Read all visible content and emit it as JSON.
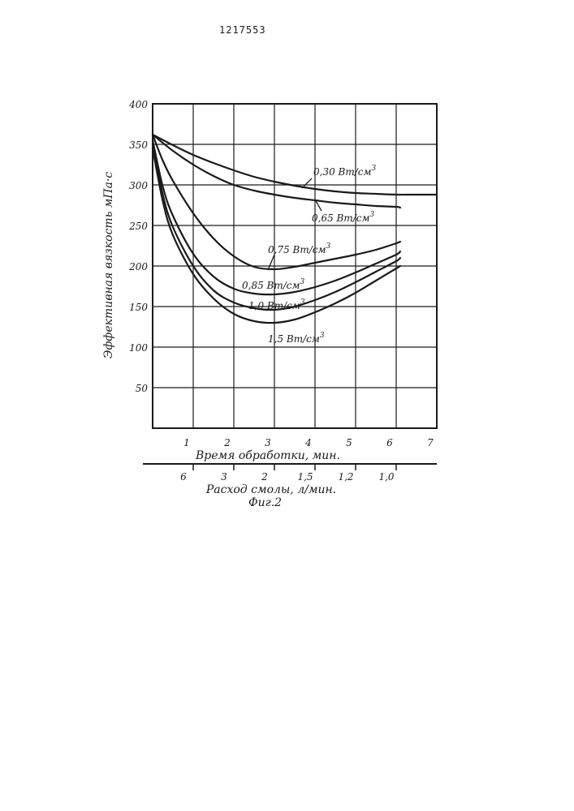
{
  "header": {
    "page_number": "1217553"
  },
  "figure": {
    "caption": "Фиг.2"
  },
  "chart_data": {
    "type": "line",
    "title": "",
    "ylabel": "Эффективная вязкость мПа·с",
    "xlabel": "Время обработки, мин.",
    "secondary_xlabel": "Расход смолы, л/мин.",
    "xlim": [
      0,
      7
    ],
    "ylim": [
      0,
      400
    ],
    "grid": true,
    "y_ticks": [
      50,
      100,
      150,
      200,
      250,
      300,
      350,
      400
    ],
    "y_tick_labels": [
      "50",
      "100",
      "150",
      "200",
      "250",
      "300",
      "350",
      "400"
    ],
    "x_ticks": [
      1,
      2,
      3,
      4,
      5,
      6,
      7
    ],
    "x_tick_labels": [
      "1",
      "2",
      "3",
      "4",
      "5",
      "6",
      "7"
    ],
    "secondary_x_ticks": [
      {
        "label": "6",
        "at_time": 1.0
      },
      {
        "label": "3",
        "at_time": 2.0
      },
      {
        "label": "2",
        "at_time": 3.0
      },
      {
        "label": "1,5",
        "at_time": 4.0
      },
      {
        "label": "1,2",
        "at_time": 5.0
      },
      {
        "label": "1,0",
        "at_time": 6.0
      }
    ],
    "series": [
      {
        "name": "0,30 Вт/см",
        "unit_sup": "3",
        "x": [
          0,
          0.5,
          1,
          1.5,
          2,
          2.5,
          3,
          3.5,
          4,
          4.5,
          5,
          5.5,
          6,
          6.5,
          7
        ],
        "y": [
          362,
          349,
          337,
          327,
          318,
          310,
          304,
          299,
          295,
          292,
          290,
          289,
          288,
          288,
          288
        ]
      },
      {
        "name": "0,65 Вт/см",
        "unit_sup": "3",
        "x": [
          0,
          0.5,
          1,
          1.5,
          2,
          2.5,
          3,
          3.5,
          4,
          4.5,
          5,
          5.5,
          6,
          6.1
        ],
        "y": [
          362,
          342,
          325,
          311,
          300,
          293,
          288,
          284,
          281,
          278,
          276,
          274,
          273,
          272
        ]
      },
      {
        "name": "0,75 Вт/см",
        "unit_sup": "3",
        "x": [
          0,
          0.25,
          0.5,
          1,
          1.5,
          2,
          2.5,
          3,
          3.5,
          4,
          4.5,
          5,
          5.5,
          6,
          6.1
        ],
        "y": [
          362,
          330,
          305,
          265,
          234,
          212,
          199,
          196,
          199,
          204,
          209,
          214,
          220,
          228,
          230
        ]
      },
      {
        "name": "0,85 Вт/см",
        "unit_sup": "3",
        "x": [
          0,
          0.25,
          0.5,
          1,
          1.5,
          2,
          2.5,
          3,
          3.5,
          4,
          4.5,
          5,
          5.5,
          6,
          6.1
        ],
        "y": [
          355,
          298,
          262,
          215,
          187,
          172,
          166,
          165,
          168,
          174,
          182,
          192,
          203,
          214,
          218
        ]
      },
      {
        "name": "1,0 Вт/см",
        "unit_sup": "3",
        "x": [
          0,
          0.25,
          0.5,
          1,
          1.5,
          2,
          2.5,
          3,
          3.5,
          4,
          4.5,
          5,
          5.5,
          6,
          6.1
        ],
        "y": [
          350,
          288,
          248,
          200,
          170,
          155,
          148,
          146,
          150,
          158,
          168,
          180,
          193,
          206,
          210
        ]
      },
      {
        "name": "1,5 Вт/см",
        "unit_sup": "3",
        "x": [
          0,
          0.25,
          0.5,
          1,
          1.5,
          2,
          2.5,
          3,
          3.5,
          4,
          4.5,
          5,
          5.5,
          6,
          6.1
        ],
        "y": [
          345,
          280,
          238,
          190,
          160,
          141,
          132,
          130,
          134,
          143,
          154,
          167,
          182,
          197,
          200
        ]
      }
    ]
  }
}
